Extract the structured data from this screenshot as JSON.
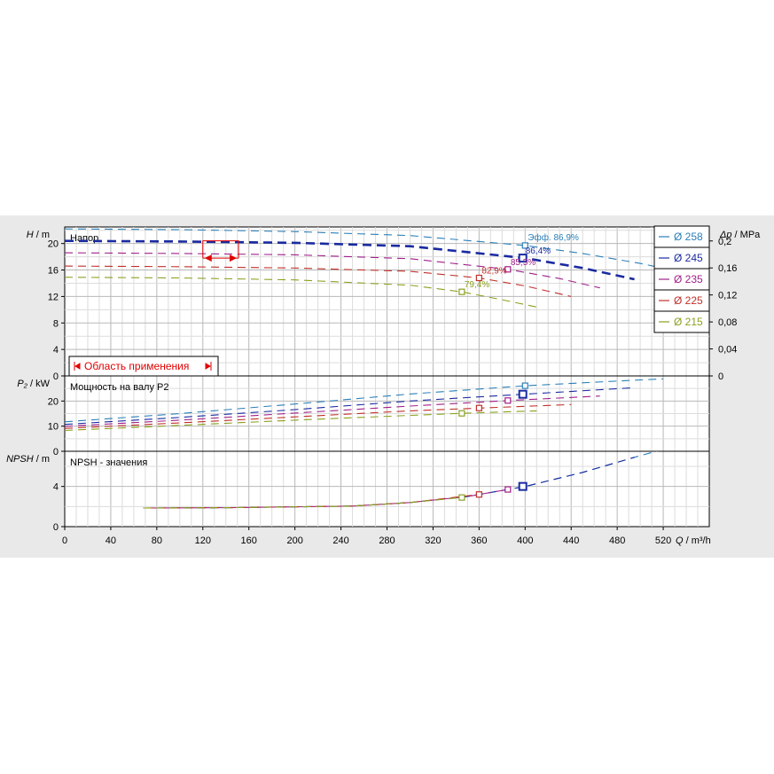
{
  "chart_data": {
    "type": "line",
    "x": {
      "label_prefix": "Q",
      "label_unit": "m³/h",
      "range": [
        0,
        560
      ],
      "ticks": [
        0,
        40,
        80,
        120,
        160,
        200,
        240,
        280,
        320,
        360,
        400,
        440,
        480,
        520
      ]
    },
    "legend": {
      "placement": "top-right",
      "entries": [
        {
          "label": "Ø 258",
          "color": "#2a7fb8"
        },
        {
          "label": "Ø 245",
          "color": "#1a2aa0"
        },
        {
          "label": "Ø 235",
          "color": "#a0208a"
        },
        {
          "label": "Ø 225",
          "color": "#c0302a"
        },
        {
          "label": "Ø 215",
          "color": "#8aa020"
        }
      ]
    },
    "panels": [
      {
        "id": "head",
        "title": "Напор",
        "ylabel_prefix": "H",
        "ylabel_unit": "m",
        "ylim": [
          0,
          22.5
        ],
        "yticks": [
          0,
          4,
          8,
          12,
          16,
          20
        ],
        "secondary_axis": {
          "label_prefix": "Δp",
          "label_unit": "MPa",
          "ticks": [
            "0",
            "0,04",
            "0,08",
            "0,12",
            "0,16",
            "0,2"
          ]
        },
        "series": [
          {
            "name": "Ø 258",
            "color": "#2a7fb8",
            "x": [
              0,
              100,
              200,
              300,
              400,
              450,
              500,
              525
            ],
            "y": [
              22.2,
              22.1,
              21.8,
              21.2,
              19.7,
              18.5,
              17.0,
              16.1
            ]
          },
          {
            "name": "Ø 245",
            "color": "#1a2aa0",
            "x": [
              0,
              100,
              200,
              300,
              400,
              450,
              495
            ],
            "y": [
              20.4,
              20.3,
              20.1,
              19.6,
              17.8,
              16.3,
              14.6
            ]
          },
          {
            "name": "Ø 235",
            "color": "#a0208a",
            "x": [
              0,
              100,
              200,
              300,
              385,
              430,
              465
            ],
            "y": [
              18.6,
              18.5,
              18.3,
              17.7,
              16.1,
              14.7,
              13.3
            ]
          },
          {
            "name": "Ø 225",
            "color": "#c0302a",
            "x": [
              0,
              100,
              200,
              300,
              360,
              400,
              440
            ],
            "y": [
              16.6,
              16.5,
              16.3,
              15.8,
              14.8,
              13.6,
              12.0
            ]
          },
          {
            "name": "Ø 215",
            "color": "#8aa020",
            "x": [
              0,
              100,
              200,
              300,
              345,
              380,
              410
            ],
            "y": [
              14.9,
              14.8,
              14.5,
              13.7,
              12.7,
              11.5,
              10.4
            ]
          }
        ],
        "bold_series": "Ø 245",
        "markers": [
          {
            "series": "Ø 258",
            "x": 400,
            "y": 19.7
          },
          {
            "series": "Ø 245",
            "x": 398,
            "y": 17.8
          },
          {
            "series": "Ø 235",
            "x": 385,
            "y": 16.1
          },
          {
            "series": "Ø 225",
            "x": 360,
            "y": 14.8
          },
          {
            "series": "Ø 215",
            "x": 345,
            "y": 12.7
          }
        ],
        "annotations": [
          {
            "text": "Эфф.  86,9%",
            "x": 400,
            "y": 20.2,
            "color": "#2a7fb8"
          },
          {
            "text": "86,4%",
            "x": 398,
            "y": 18.2,
            "color": "#1a2aa0"
          },
          {
            "text": "85,5%",
            "x": 385,
            "y": 16.5,
            "color": "#a0208a"
          },
          {
            "text": "82,9%",
            "x": 360,
            "y": 15.2,
            "color": "#c0302a"
          },
          {
            "text": "79,4%",
            "x": 345,
            "y": 13.1,
            "color": "#8aa020"
          }
        ],
        "operating_range": {
          "label": "Область применения",
          "x_from": 120,
          "x_to": 151,
          "y_from": 17.8,
          "y_to": 20.4,
          "color": "#e00000"
        }
      },
      {
        "id": "power",
        "title": "Мощность на валу P2",
        "ylabel_prefix": "P₂",
        "ylabel_unit": "kW",
        "ylim": [
          0,
          30
        ],
        "yticks": [
          0,
          10,
          20
        ],
        "series": [
          {
            "name": "Ø 258",
            "color": "#2a7fb8",
            "x": [
              0,
              100,
              200,
              300,
              400,
              500,
              520
            ],
            "y": [
              11.7,
              15.0,
              18.8,
              22.8,
              26.1,
              28.4,
              28.8
            ]
          },
          {
            "name": "Ø 245",
            "color": "#1a2aa0",
            "x": [
              0,
              100,
              200,
              300,
              398,
              495
            ],
            "y": [
              10.7,
              13.5,
              16.6,
              20.0,
              22.7,
              25.3
            ]
          },
          {
            "name": "Ø 235",
            "color": "#a0208a",
            "x": [
              0,
              100,
              200,
              300,
              385,
              465
            ],
            "y": [
              9.9,
              12.4,
              15.2,
              18.0,
              20.2,
              22.0
            ]
          },
          {
            "name": "Ø 225",
            "color": "#c0302a",
            "x": [
              0,
              100,
              200,
              300,
              360,
              440
            ],
            "y": [
              9.1,
              11.3,
              13.7,
              16.1,
              17.2,
              18.6
            ]
          },
          {
            "name": "Ø 215",
            "color": "#8aa020",
            "x": [
              0,
              100,
              200,
              300,
              345,
              410
            ],
            "y": [
              8.3,
              10.3,
              12.4,
              14.3,
              15.1,
              16.1
            ]
          }
        ],
        "markers": [
          {
            "series": "Ø 258",
            "x": 400,
            "y": 26.1
          },
          {
            "series": "Ø 245",
            "x": 398,
            "y": 22.7
          },
          {
            "series": "Ø 235",
            "x": 385,
            "y": 20.2
          },
          {
            "series": "Ø 225",
            "x": 360,
            "y": 17.2
          },
          {
            "series": "Ø 215",
            "x": 345,
            "y": 15.1
          }
        ]
      },
      {
        "id": "npsh",
        "title": "NPSH - значения",
        "ylabel_prefix": "NPSH",
        "ylabel_unit": "m",
        "ylim": [
          0,
          7.5
        ],
        "yticks": [
          0,
          4
        ],
        "series": [
          {
            "name": "Ø 258",
            "color": "#2a7fb8",
            "x": [
              80,
              150,
              250,
              300,
              350,
              400,
              450,
              495,
              520
            ],
            "y": [
              1.85,
              1.9,
              2.05,
              2.4,
              3.0,
              4.0,
              5.4,
              6.9,
              7.7
            ]
          },
          {
            "name": "Ø 245",
            "color": "#1a2aa0",
            "x": [
              80,
              150,
              250,
              300,
              350,
              400,
              450,
              495
            ],
            "y": [
              1.85,
              1.9,
              2.05,
              2.4,
              3.0,
              4.0,
              5.4,
              6.9
            ]
          },
          {
            "name": "Ø 235",
            "color": "#a0208a",
            "x": [
              75,
              150,
              250,
              300,
              350,
              385
            ],
            "y": [
              1.85,
              1.9,
              2.05,
              2.4,
              3.0,
              3.7
            ]
          },
          {
            "name": "Ø 225",
            "color": "#c0302a",
            "x": [
              70,
              150,
              250,
              300,
              360
            ],
            "y": [
              1.85,
              1.9,
              2.05,
              2.4,
              3.2
            ]
          },
          {
            "name": "Ø 215",
            "color": "#8aa020",
            "x": [
              68,
              150,
              250,
              300,
              345
            ],
            "y": [
              1.85,
              1.9,
              2.05,
              2.4,
              2.9
            ]
          }
        ],
        "markers": [
          {
            "series": "Ø 245",
            "x": 398,
            "y": 4.0
          },
          {
            "series": "Ø 235",
            "x": 385,
            "y": 3.7
          },
          {
            "series": "Ø 225",
            "x": 360,
            "y": 3.2
          },
          {
            "series": "Ø 215",
            "x": 345,
            "y": 2.9
          }
        ]
      }
    ]
  }
}
